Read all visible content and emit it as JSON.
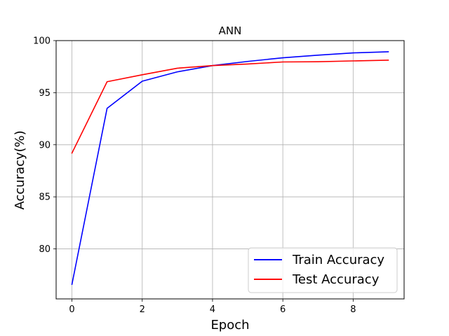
{
  "chart_data": {
    "type": "line",
    "title": "ANN",
    "xlabel": "Epoch",
    "ylabel": "Accuracy(%)",
    "x": [
      0,
      1,
      2,
      3,
      4,
      5,
      6,
      7,
      8,
      9
    ],
    "xlim": [
      -0.45,
      9.45
    ],
    "ylim": [
      75.2,
      100.0
    ],
    "xticks": [
      0,
      2,
      4,
      6,
      8
    ],
    "yticks": [
      80,
      85,
      90,
      95,
      100
    ],
    "grid": true,
    "legend_position": "lower-right",
    "series": [
      {
        "name": "Train Accuracy",
        "color": "#0000ff",
        "values": [
          76.6,
          93.5,
          96.1,
          97.0,
          97.6,
          98.0,
          98.35,
          98.6,
          98.82,
          98.93
        ]
      },
      {
        "name": "Test Accuracy",
        "color": "#ff0000",
        "values": [
          89.2,
          96.05,
          96.72,
          97.35,
          97.6,
          97.75,
          97.95,
          97.97,
          98.05,
          98.12
        ]
      }
    ]
  }
}
